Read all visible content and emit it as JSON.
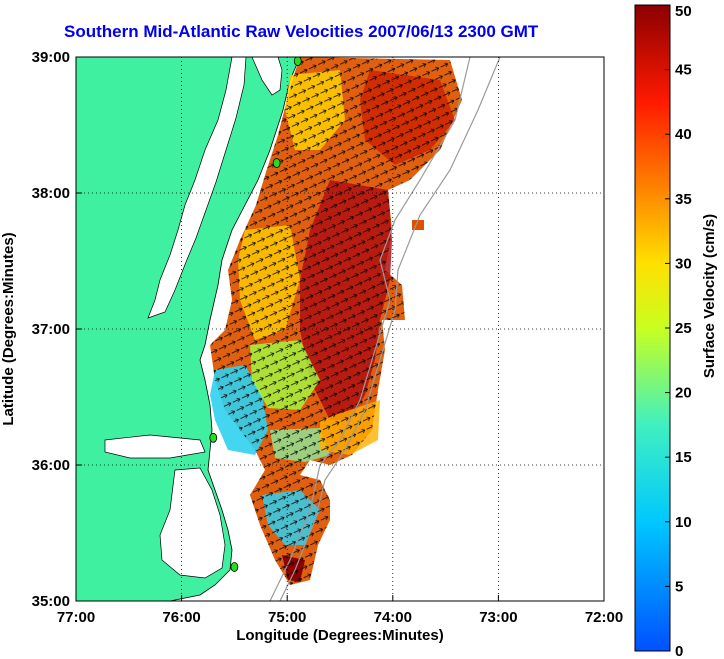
{
  "title": "Southern Mid-Atlantic Raw Velocities 2007/06/13 2300 GMT",
  "xlabel": "Longitude (Degrees:Minutes)",
  "ylabel": "Latitude (Degrees:Minutes)",
  "xticks": [
    "77:00",
    "76:00",
    "75:00",
    "74:00",
    "73:00",
    "72:00"
  ],
  "yticks": [
    "39:00",
    "38:00",
    "37:00",
    "36:00",
    "35:00"
  ],
  "colorbar": {
    "label": "Surface Velocity (cm/s)",
    "ticks": [
      "0",
      "5",
      "10",
      "15",
      "20",
      "25",
      "30",
      "35",
      "40",
      "45",
      "50"
    ],
    "min": 0,
    "max": 50
  },
  "colors": {
    "land": "#3ff0a0",
    "title": "#0000ee",
    "station": "#22dd22",
    "bathymetry": "#9a9a9a"
  },
  "stations_lon_lat": [
    [
      -74.9,
      38.97
    ],
    [
      -75.1,
      38.22
    ],
    [
      -75.7,
      36.2
    ],
    [
      -75.5,
      35.25
    ]
  ]
}
